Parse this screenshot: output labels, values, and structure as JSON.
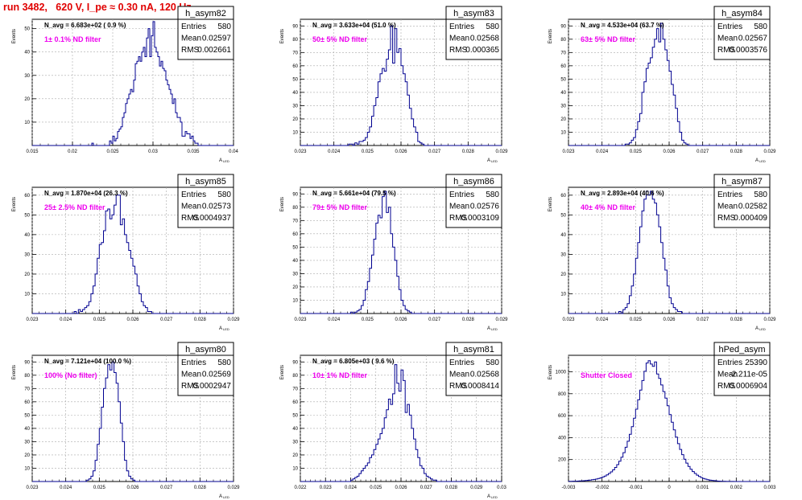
{
  "title": "run 3482,   620 V, I_pe ≈ 0.30 nA, 120 Hz",
  "chart_data": [
    {
      "type": "bar",
      "name": "h_asym82",
      "nav": "N_avg = 6.683e+02 ( 0.9 %)",
      "note": "1± 0.1% ND filter",
      "stats": {
        "entries": "580",
        "mean": "0.02597",
        "rms": "0.002661"
      },
      "xlim": [
        0.015,
        0.04
      ],
      "ylim": [
        0,
        54
      ],
      "xticks": [
        "0.015",
        "0.02",
        "0.025",
        "0.03",
        "0.035",
        "0.04"
      ],
      "yticks": [
        "10",
        "20",
        "30",
        "40",
        "50"
      ],
      "ylabel": "Events",
      "xlabel": "A",
      "values": [
        0,
        0,
        0,
        0,
        0,
        0,
        0,
        0,
        0,
        0,
        0,
        0,
        0,
        0,
        0,
        0,
        0,
        0,
        0,
        0,
        0,
        0,
        0,
        0,
        0,
        0,
        0,
        0,
        0,
        0,
        0,
        0,
        0,
        0,
        0,
        0,
        0,
        1,
        0,
        0,
        0,
        0,
        0,
        0,
        0,
        0,
        0,
        0,
        2,
        1,
        4,
        2,
        3,
        6,
        7,
        8,
        12,
        14,
        18,
        20,
        22,
        24,
        23,
        28,
        35,
        36,
        38,
        36,
        40,
        42,
        38,
        46,
        50,
        38,
        47,
        53,
        42,
        40,
        38,
        34,
        36,
        33,
        32,
        28,
        26,
        24,
        22,
        18,
        20,
        14,
        12,
        12,
        10,
        4,
        4,
        6,
        5,
        5,
        3,
        4,
        2,
        1,
        1,
        0,
        0,
        0,
        0,
        0,
        0,
        0,
        0,
        0,
        0,
        0,
        0,
        0,
        0,
        0,
        0,
        0,
        0,
        0,
        0,
        0,
        0
      ]
    },
    {
      "type": "bar",
      "name": "h_asym83",
      "nav": "N_avg = 3.633e+04 (51.0 %)",
      "note": "50± 5% ND filter",
      "stats": {
        "entries": "580",
        "mean": "0.02568",
        "rms": "0.000365"
      },
      "xlim": [
        0.023,
        0.029
      ],
      "ylim": [
        0,
        95
      ],
      "xticks": [
        "0.023",
        "0.024",
        "0.025",
        "0.026",
        "0.027",
        "0.028",
        "0.029"
      ],
      "yticks": [
        "10",
        "20",
        "30",
        "40",
        "50",
        "60",
        "70",
        "80",
        "90"
      ],
      "ylabel": "Events",
      "xlabel": "A",
      "values": [
        0,
        0,
        0,
        0,
        0,
        0,
        0,
        0,
        0,
        0,
        0,
        0,
        0,
        0,
        0,
        0,
        0,
        0,
        0,
        0,
        0,
        0,
        0,
        1,
        1,
        0,
        2,
        1,
        3,
        3,
        4,
        6,
        10,
        14,
        22,
        30,
        36,
        48,
        54,
        58,
        56,
        65,
        72,
        90,
        62,
        88,
        70,
        73,
        60,
        54,
        48,
        38,
        28,
        20,
        14,
        10,
        3,
        2,
        1,
        0,
        0,
        0,
        0,
        0,
        0,
        0,
        0,
        0,
        0,
        0,
        0,
        0,
        0,
        0,
        0,
        0,
        0,
        0,
        0,
        0,
        0,
        0,
        0,
        0,
        0,
        0,
        0,
        0,
        0,
        0,
        0,
        0,
        0,
        0,
        0,
        0
      ]
    },
    {
      "type": "bar",
      "name": "h_asym84",
      "nav": "N_avg = 4.533e+04 (63.7 %)",
      "note": "63± 5% ND filter",
      "stats": {
        "entries": "580",
        "mean": "0.02567",
        "rms": "0.0003576"
      },
      "xlim": [
        0.023,
        0.029
      ],
      "ylim": [
        0,
        95
      ],
      "xticks": [
        "0.023",
        "0.024",
        "0.025",
        "0.026",
        "0.027",
        "0.028",
        "0.029"
      ],
      "yticks": [
        "10",
        "20",
        "30",
        "40",
        "50",
        "60",
        "70",
        "80",
        "90"
      ],
      "ylabel": "Events",
      "xlabel": "A",
      "values": [
        0,
        0,
        0,
        0,
        0,
        0,
        0,
        0,
        0,
        0,
        0,
        0,
        0,
        0,
        0,
        0,
        0,
        0,
        0,
        0,
        0,
        0,
        0,
        0,
        0,
        0,
        0,
        1,
        1,
        2,
        4,
        6,
        12,
        18,
        24,
        40,
        48,
        58,
        62,
        66,
        74,
        80,
        88,
        78,
        92,
        80,
        72,
        64,
        56,
        46,
        38,
        28,
        18,
        10,
        4,
        2,
        1,
        0,
        0,
        0,
        0,
        0,
        0,
        0,
        0,
        0,
        0,
        0,
        0,
        0,
        0,
        0,
        0,
        0,
        0,
        0,
        0,
        0,
        0,
        0,
        0,
        0,
        0,
        0,
        0,
        0,
        0,
        0,
        0,
        0,
        0,
        0,
        0,
        0,
        0,
        0
      ]
    },
    {
      "type": "bar",
      "name": "h_asym85",
      "nav": "N_avg = 1.870e+04 (26.3 %)",
      "note": "25± 2.5% ND filter",
      "stats": {
        "entries": "580",
        "mean": "0.02573",
        "rms": "0.0004937"
      },
      "xlim": [
        0.023,
        0.029
      ],
      "ylim": [
        0,
        64
      ],
      "xticks": [
        "0.023",
        "0.024",
        "0.025",
        "0.026",
        "0.027",
        "0.028",
        "0.029"
      ],
      "yticks": [
        "10",
        "20",
        "30",
        "40",
        "50",
        "60"
      ],
      "ylabel": "Events",
      "xlabel": "A",
      "values": [
        0,
        0,
        0,
        0,
        0,
        0,
        0,
        0,
        0,
        0,
        0,
        0,
        0,
        0,
        0,
        0,
        0,
        0,
        0,
        0,
        1,
        0,
        2,
        1,
        2,
        3,
        4,
        6,
        10,
        14,
        20,
        28,
        35,
        36,
        42,
        52,
        53,
        48,
        50,
        55,
        60,
        60,
        45,
        48,
        40,
        36,
        32,
        28,
        24,
        20,
        14,
        10,
        6,
        4,
        3,
        1,
        1,
        0,
        0,
        0,
        0,
        0,
        0,
        0,
        0,
        0,
        0,
        0,
        0,
        0,
        0,
        0,
        0,
        0,
        0,
        0,
        0,
        0,
        0,
        0,
        0,
        0,
        0,
        0,
        0,
        0,
        0,
        0,
        0,
        0,
        0,
        0,
        0,
        0,
        0,
        0
      ]
    },
    {
      "type": "bar",
      "name": "h_asym86",
      "nav": "N_avg = 5.661e+04 (79.5 %)",
      "note": "79± 5% ND filter",
      "stats": {
        "entries": "580",
        "mean": "0.02576",
        "rms": "0.0003109"
      },
      "xlim": [
        0.023,
        0.029
      ],
      "ylim": [
        0,
        95
      ],
      "xticks": [
        "0.023",
        "0.024",
        "0.025",
        "0.026",
        "0.027",
        "0.028",
        "0.029"
      ],
      "yticks": [
        "10",
        "20",
        "30",
        "40",
        "50",
        "60",
        "70",
        "80",
        "90"
      ],
      "ylabel": "Events",
      "xlabel": "A",
      "values": [
        0,
        0,
        0,
        0,
        0,
        0,
        0,
        0,
        0,
        0,
        0,
        0,
        0,
        0,
        0,
        0,
        0,
        0,
        0,
        0,
        0,
        0,
        0,
        0,
        1,
        0,
        1,
        2,
        3,
        6,
        10,
        18,
        24,
        34,
        44,
        56,
        68,
        74,
        72,
        88,
        92,
        76,
        80,
        60,
        50,
        40,
        28,
        18,
        10,
        6,
        3,
        2,
        1,
        0,
        0,
        0,
        0,
        0,
        0,
        0,
        0,
        0,
        0,
        0,
        0,
        0,
        0,
        0,
        0,
        0,
        0,
        0,
        0,
        0,
        0,
        0,
        0,
        0,
        0,
        0,
        0,
        0,
        0,
        0,
        0,
        0,
        0,
        0,
        0,
        0,
        0,
        0,
        0,
        0,
        0,
        0
      ]
    },
    {
      "type": "bar",
      "name": "h_asym87",
      "nav": "N_avg = 2.893e+04 (40.6 %)",
      "note": "40± 4% ND filter",
      "stats": {
        "entries": "580",
        "mean": "0.02582",
        "rms": "0.000409"
      },
      "xlim": [
        0.023,
        0.029
      ],
      "ylim": [
        0,
        64
      ],
      "xticks": [
        "0.023",
        "0.024",
        "0.025",
        "0.026",
        "0.027",
        "0.028",
        "0.029"
      ],
      "yticks": [
        "10",
        "20",
        "30",
        "40",
        "50",
        "60"
      ],
      "ylabel": "Events",
      "xlabel": "A",
      "values": [
        0,
        0,
        0,
        0,
        0,
        0,
        0,
        0,
        0,
        0,
        0,
        0,
        0,
        0,
        0,
        0,
        0,
        0,
        0,
        0,
        0,
        0,
        0,
        0,
        1,
        0,
        2,
        3,
        5,
        9,
        14,
        20,
        28,
        36,
        44,
        52,
        58,
        62,
        60,
        62,
        58,
        56,
        50,
        44,
        36,
        28,
        22,
        14,
        8,
        5,
        3,
        2,
        1,
        1,
        0,
        0,
        0,
        0,
        0,
        0,
        0,
        0,
        0,
        0,
        0,
        0,
        0,
        0,
        0,
        0,
        0,
        0,
        0,
        0,
        0,
        0,
        0,
        0,
        0,
        0,
        0,
        0,
        0,
        0,
        0,
        0,
        0,
        0,
        0,
        0,
        0,
        0,
        0,
        0,
        0,
        0
      ]
    },
    {
      "type": "bar",
      "name": "h_asym80",
      "nav": "N_avg = 7.121e+04 (100.0 %)",
      "note": "100% (No filter)",
      "stats": {
        "entries": "580",
        "mean": "0.02569",
        "rms": "0.0002947"
      },
      "xlim": [
        0.023,
        0.029
      ],
      "ylim": [
        0,
        95
      ],
      "xticks": [
        "0.023",
        "0.024",
        "0.025",
        "0.026",
        "0.027",
        "0.028",
        "0.029"
      ],
      "yticks": [
        "10",
        "20",
        "30",
        "40",
        "50",
        "60",
        "70",
        "80",
        "90"
      ],
      "ylabel": "Events",
      "xlabel": "A",
      "values": [
        0,
        0,
        0,
        0,
        0,
        0,
        0,
        0,
        0,
        0,
        0,
        0,
        0,
        0,
        0,
        0,
        0,
        0,
        0,
        0,
        0,
        0,
        0,
        0,
        0,
        0,
        1,
        2,
        4,
        8,
        16,
        28,
        40,
        56,
        70,
        78,
        88,
        84,
        90,
        82,
        74,
        60,
        44,
        30,
        16,
        8,
        4,
        2,
        1,
        0,
        0,
        0,
        0,
        0,
        0,
        0,
        0,
        0,
        0,
        0,
        0,
        0,
        0,
        0,
        0,
        0,
        0,
        0,
        0,
        0,
        0,
        0,
        0,
        0,
        0,
        0,
        0,
        0,
        0,
        0,
        0,
        0,
        0,
        0,
        0,
        0,
        0,
        0,
        0,
        0,
        0,
        0,
        0,
        0,
        0,
        0
      ]
    },
    {
      "type": "bar",
      "name": "h_asym81",
      "nav": "N_avg = 6.805e+03 ( 9.6 %)",
      "note": "10± 1% ND filter",
      "stats": {
        "entries": "580",
        "mean": "0.02568",
        "rms": "0.0008414"
      },
      "xlim": [
        0.022,
        0.03
      ],
      "ylim": [
        0,
        95
      ],
      "xticks": [
        "0.022",
        "0.023",
        "0.024",
        "0.025",
        "0.026",
        "0.027",
        "0.028",
        "0.029",
        "0.03"
      ],
      "yticks": [
        "10",
        "20",
        "30",
        "40",
        "50",
        "60",
        "70",
        "80",
        "90"
      ],
      "ylabel": "Events",
      "xlabel": "A",
      "values": [
        0,
        0,
        0,
        0,
        0,
        0,
        0,
        0,
        0,
        0,
        0,
        0,
        0,
        0,
        0,
        0,
        0,
        0,
        0,
        0,
        0,
        0,
        0,
        0,
        1,
        2,
        3,
        4,
        6,
        8,
        10,
        12,
        14,
        18,
        20,
        24,
        28,
        32,
        36,
        40,
        48,
        54,
        62,
        58,
        66,
        88,
        74,
        68,
        84,
        76,
        52,
        58,
        50,
        40,
        32,
        24,
        18,
        12,
        10,
        6,
        4,
        3,
        2,
        1,
        1,
        0,
        0,
        0,
        0,
        0,
        0,
        0,
        0,
        0,
        0,
        0,
        0,
        0,
        0,
        0,
        0,
        0,
        0,
        0,
        0,
        0,
        0,
        0,
        0,
        0,
        0,
        0,
        0,
        0,
        0,
        0
      ]
    },
    {
      "type": "bar",
      "name": "hPed_asym",
      "nav": "",
      "note": "Shutter Closed",
      "stats": {
        "entries": "25390",
        "mean": "-2.211e-05",
        "rms": "0.0006904"
      },
      "xlim": [
        -0.003,
        0.003
      ],
      "ylim": [
        0,
        1150
      ],
      "xticks": [
        "-0.003",
        "-0.002",
        "-0.001",
        "0",
        "0.001",
        "0.002",
        "0.003"
      ],
      "yticks": [
        "200",
        "400",
        "600",
        "800",
        "1000"
      ],
      "ylabel": "Events",
      "xlabel": "",
      "values": [
        2,
        2,
        3,
        3,
        4,
        5,
        6,
        7,
        9,
        11,
        13,
        16,
        19,
        23,
        28,
        34,
        41,
        50,
        60,
        73,
        88,
        106,
        128,
        154,
        185,
        221,
        263,
        312,
        367,
        430,
        500,
        577,
        659,
        745,
        833,
        920,
        1004,
        1080,
        1100,
        1070,
        1050,
        1090,
        980,
        940,
        880,
        820,
        760,
        690,
        610,
        540,
        470,
        404,
        345,
        292,
        245,
        203,
        168,
        138,
        112,
        91,
        73,
        58,
        46,
        36,
        28,
        22,
        17,
        13,
        10,
        8,
        6,
        4,
        3,
        2,
        2,
        1,
        1,
        1,
        1,
        0,
        0,
        0,
        0,
        0,
        0,
        0,
        0,
        0,
        0,
        0,
        0,
        0,
        0,
        0,
        0,
        0
      ]
    }
  ]
}
